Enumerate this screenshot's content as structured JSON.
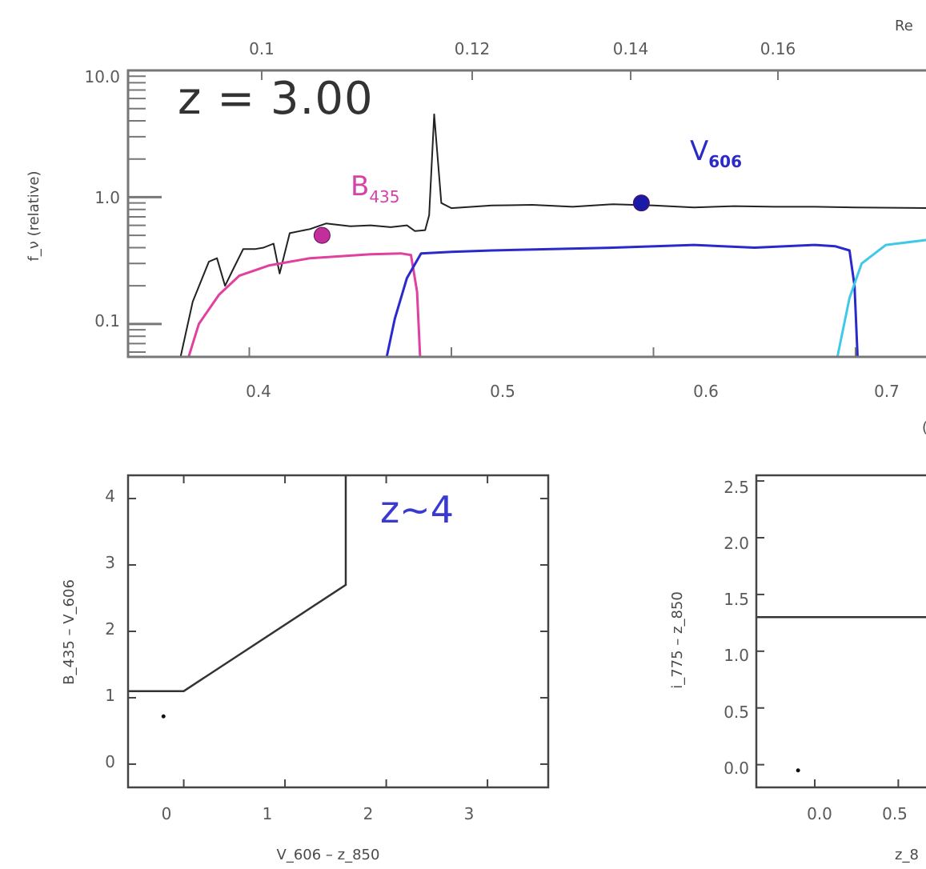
{
  "chart_data": [
    {
      "type": "line",
      "panel": "sed",
      "annotation": "z = 3.00",
      "xlabel_bottom_fragment": "(",
      "xlabel_top_fragment": "Re",
      "ylabel": "f_ν (relative)",
      "yscale": "log",
      "ylim": [
        0.055,
        10.0
      ],
      "xlim": [
        0.34,
        0.74
      ],
      "x_ticks": [
        "0.4",
        "0.5",
        "0.6",
        "0.7"
      ],
      "x_tick_values": [
        0.4,
        0.5,
        0.6,
        0.7
      ],
      "x_top_ticks": [
        "0.1",
        "0.12",
        "0.14",
        "0.16"
      ],
      "x_top_tick_values": [
        0.1,
        0.12,
        0.14,
        0.16
      ],
      "y_ticks": [
        "10.0",
        "1.0",
        "0.1"
      ],
      "y_tick_values": [
        10.0,
        1.0,
        0.1
      ],
      "series": [
        {
          "key": "galaxy_sed",
          "color": "#222222",
          "points": [
            [
              0.366,
              0.055
            ],
            [
              0.372,
              0.15
            ],
            [
              0.38,
              0.31
            ],
            [
              0.384,
              0.33
            ],
            [
              0.388,
              0.2
            ],
            [
              0.392,
              0.27
            ],
            [
              0.397,
              0.39
            ],
            [
              0.403,
              0.39
            ],
            [
              0.407,
              0.4
            ],
            [
              0.412,
              0.43
            ],
            [
              0.415,
              0.25
            ],
            [
              0.42,
              0.52
            ],
            [
              0.425,
              0.54
            ],
            [
              0.43,
              0.56
            ],
            [
              0.438,
              0.62
            ],
            [
              0.45,
              0.59
            ],
            [
              0.46,
              0.6
            ],
            [
              0.47,
              0.58
            ],
            [
              0.478,
              0.6
            ],
            [
              0.482,
              0.54
            ],
            [
              0.487,
              0.55
            ],
            [
              0.489,
              0.72
            ],
            [
              0.4915,
              4.5
            ],
            [
              0.495,
              0.9
            ],
            [
              0.5,
              0.82
            ],
            [
              0.52,
              0.86
            ],
            [
              0.54,
              0.87
            ],
            [
              0.56,
              0.84
            ],
            [
              0.58,
              0.88
            ],
            [
              0.6,
              0.86
            ],
            [
              0.62,
              0.83
            ],
            [
              0.64,
              0.85
            ],
            [
              0.66,
              0.84
            ],
            [
              0.68,
              0.84
            ],
            [
              0.7,
              0.83
            ],
            [
              0.74,
              0.82
            ]
          ]
        },
        {
          "key": "b435_filter",
          "color": "#e0409f",
          "points": [
            [
              0.37,
              0.055
            ],
            [
              0.375,
              0.1
            ],
            [
              0.385,
              0.17
            ],
            [
              0.395,
              0.24
            ],
            [
              0.41,
              0.29
            ],
            [
              0.43,
              0.33
            ],
            [
              0.46,
              0.355
            ],
            [
              0.475,
              0.36
            ],
            [
              0.48,
              0.35
            ],
            [
              0.483,
              0.18
            ],
            [
              0.4845,
              0.055
            ]
          ]
        },
        {
          "key": "v606_filter",
          "color": "#2a2acc",
          "points": [
            [
              0.468,
              0.055
            ],
            [
              0.472,
              0.11
            ],
            [
              0.478,
              0.23
            ],
            [
              0.485,
              0.36
            ],
            [
              0.5,
              0.37
            ],
            [
              0.52,
              0.38
            ],
            [
              0.55,
              0.39
            ],
            [
              0.58,
              0.4
            ],
            [
              0.62,
              0.42
            ],
            [
              0.65,
              0.4
            ],
            [
              0.68,
              0.42
            ],
            [
              0.69,
              0.41
            ],
            [
              0.697,
              0.38
            ],
            [
              0.6995,
              0.2
            ],
            [
              0.701,
              0.055
            ]
          ]
        },
        {
          "key": "next_filter",
          "color": "#40c8e8",
          "points": [
            [
              0.691,
              0.055
            ],
            [
              0.697,
              0.16
            ],
            [
              0.703,
              0.3
            ],
            [
              0.715,
              0.42
            ],
            [
              0.74,
              0.47
            ]
          ]
        }
      ],
      "markers": [
        {
          "label_main": "B",
          "label_sub": "435",
          "x": 0.436,
          "y": 0.5,
          "color": "#c22e9a"
        },
        {
          "label_main": "V",
          "label_sub": "606",
          "x": 0.594,
          "y": 0.9,
          "color": "#1a1aa8"
        }
      ]
    },
    {
      "type": "scatter",
      "panel": "color_color_z4",
      "annotation": "z~4",
      "xlabel": "V_606 – z_850",
      "ylabel": "B_435 – V_606",
      "xlim": [
        -0.55,
        3.6
      ],
      "ylim": [
        -0.35,
        4.35
      ],
      "x_ticks": [
        "0",
        "1",
        "2",
        "3"
      ],
      "x_tick_values": [
        0,
        1,
        2,
        3
      ],
      "y_ticks": [
        "0",
        "1",
        "2",
        "3",
        "4"
      ],
      "y_tick_values": [
        0,
        1,
        2,
        3,
        4
      ],
      "selection_box": [
        [
          -0.55,
          1.1
        ],
        [
          0.0,
          1.1
        ],
        [
          1.6,
          2.7
        ],
        [
          1.6,
          4.35
        ]
      ],
      "points": [
        [
          -0.2,
          0.72
        ]
      ]
    },
    {
      "type": "scatter",
      "panel": "color_color_second",
      "xlabel_fragment": "z_8",
      "ylabel": "i_775 – z_850",
      "xlim": [
        -0.35,
        0.8
      ],
      "ylim": [
        -0.2,
        2.55
      ],
      "x_ticks": [
        "0.0",
        "0.5"
      ],
      "x_tick_values": [
        0.0,
        0.5
      ],
      "y_ticks": [
        "0.0",
        "0.5",
        "1.0",
        "1.5",
        "2.0",
        "2.5"
      ],
      "y_tick_values": [
        0.0,
        0.5,
        1.0,
        1.5,
        2.0,
        2.5
      ],
      "selection_line_y": 1.3,
      "points": [
        [
          -0.1,
          -0.05
        ]
      ]
    }
  ]
}
